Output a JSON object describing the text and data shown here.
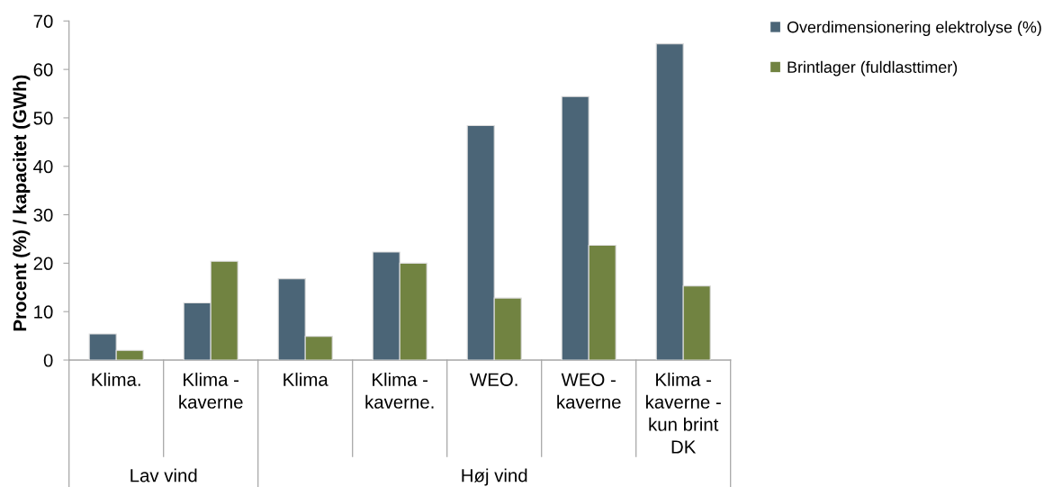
{
  "chart_data": {
    "type": "bar",
    "ylabel": "Procent (%) / kapacitet (GWh)",
    "categories": [
      "Klima.",
      "Klima -\nkaverne",
      "Klima",
      "Klima -\nkaverne.",
      "WEO.",
      "WEO -\nkaverne",
      "Klima -\nkaverne -\nkun brint\nDK"
    ],
    "series": [
      {
        "name": "Overdimensionering elektrolyse (%)",
        "color": "#4b6577",
        "values": [
          5.4,
          11.8,
          16.8,
          22.3,
          48.4,
          54.4,
          65.3
        ]
      },
      {
        "name": "Brintlager (fuldlasttimer)",
        "color": "#718341",
        "values": [
          2.0,
          20.4,
          4.9,
          20.0,
          12.8,
          23.7,
          15.3
        ]
      }
    ],
    "ylim": [
      0,
      70
    ],
    "yticks": [
      0,
      10,
      20,
      30,
      40,
      50,
      60,
      70
    ],
    "legend": "top right",
    "annotations": [
      "Lav vind",
      "Høj vind"
    ]
  }
}
